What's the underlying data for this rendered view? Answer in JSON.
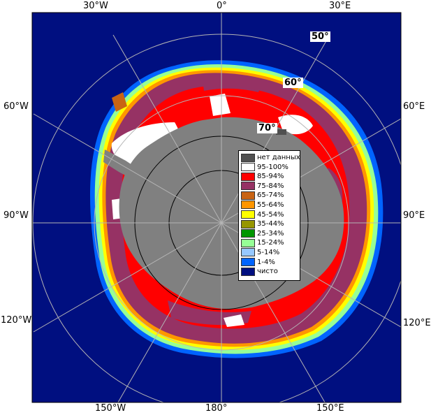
{
  "colors": {
    "ocean": "#000f80",
    "land": "#808080",
    "no_data": "#505050",
    "grid": "#b4b4b4",
    "frame": "#000000"
  },
  "lon_labels": {
    "top": [
      "30°W",
      "0°",
      "30°E"
    ],
    "bottom": [
      "150°W",
      "180°",
      "150°E"
    ],
    "left": [
      "60°W",
      "90°W",
      "120°W"
    ],
    "right": [
      "60°E",
      "90°E",
      "120°E"
    ]
  },
  "lat_labels": [
    "50°",
    "60°",
    "70°"
  ],
  "legend": [
    {
      "label": "нет данных",
      "color": "#505050"
    },
    {
      "label": "95-100%",
      "color": "#ffffff"
    },
    {
      "label": "85-94%",
      "color": "#ff0000"
    },
    {
      "label": "75-84%",
      "color": "#963264"
    },
    {
      "label": "65-74%",
      "color": "#c86414"
    },
    {
      "label": "55-64%",
      "color": "#ff9600"
    },
    {
      "label": "45-54%",
      "color": "#ffff00"
    },
    {
      "label": "35-44%",
      "color": "#969600"
    },
    {
      "label": "25-34%",
      "color": "#009600"
    },
    {
      "label": "15-24%",
      "color": "#96ff96"
    },
    {
      "label": "5-14%",
      "color": "#96c8ff"
    },
    {
      "label": "1-4%",
      "color": "#0064ff"
    },
    {
      "label": "чисто",
      "color": "#000f80"
    }
  ]
}
